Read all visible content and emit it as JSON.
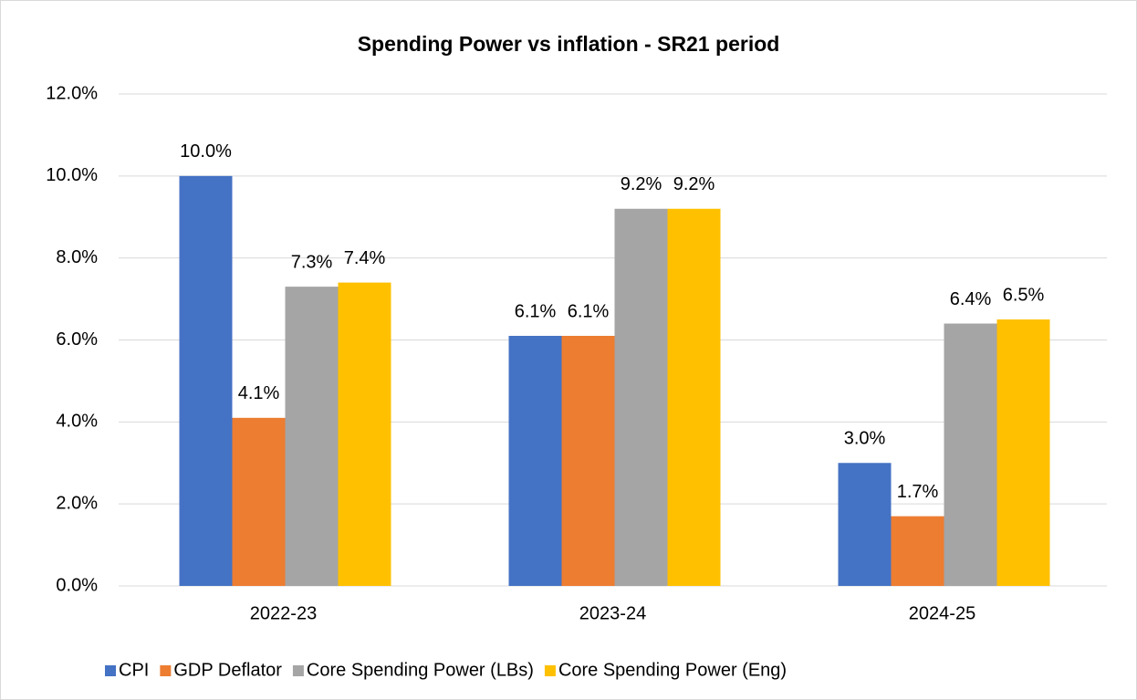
{
  "chart_data": {
    "type": "bar",
    "title": "Spending Power vs inflation - SR21 period",
    "categories": [
      "2022-23",
      "2023-24",
      "2024-25"
    ],
    "series": [
      {
        "name": "CPI",
        "color": "#4472c4",
        "values": [
          10.0,
          6.1,
          3.0
        ],
        "value_labels": [
          "10.0%",
          "6.1%",
          "3.0%"
        ]
      },
      {
        "name": "GDP Deflator",
        "color": "#ed7d31",
        "values": [
          4.1,
          6.1,
          1.7
        ],
        "value_labels": [
          "4.1%",
          "6.1%",
          "1.7%"
        ]
      },
      {
        "name": "Core Spending Power (LBs)",
        "color": "#a5a5a5",
        "values": [
          7.3,
          9.2,
          6.4
        ],
        "value_labels": [
          "7.3%",
          "9.2%",
          "6.4%"
        ]
      },
      {
        "name": "Core Spending Power (Eng)",
        "color": "#ffc000",
        "values": [
          7.4,
          9.2,
          6.5
        ],
        "value_labels": [
          "7.4%",
          "9.2%",
          "6.5%"
        ]
      }
    ],
    "ylim": [
      0,
      12
    ],
    "yticks": [
      {
        "value": 0,
        "label": "0.0%"
      },
      {
        "value": 2,
        "label": "2.0%"
      },
      {
        "value": 4,
        "label": "4.0%"
      },
      {
        "value": 6,
        "label": "6.0%"
      },
      {
        "value": 8,
        "label": "8.0%"
      },
      {
        "value": 10,
        "label": "10.0%"
      },
      {
        "value": 12,
        "label": "12.0%"
      }
    ],
    "grid": true,
    "legend": "bottom"
  }
}
